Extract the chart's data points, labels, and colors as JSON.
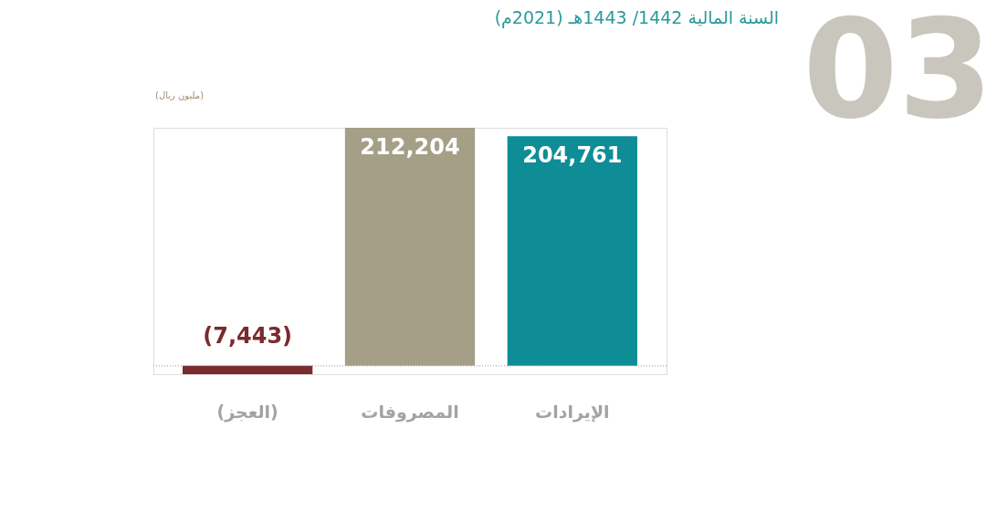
{
  "chart_data": {
    "type": "bar",
    "title": "السنة المالية 1442/ 1443هـ (2021م)",
    "ylabel": "(مليون ريال)",
    "categories": [
      "(العجز)",
      "المصروفات",
      "الإيرادات"
    ],
    "values": [
      -7443,
      212204,
      204761
    ],
    "colors": [
      "#7b2a2e",
      "#a59f87",
      "#0e8d96"
    ],
    "value_labels": [
      "(7,443)",
      "212,204",
      "204,761"
    ],
    "ref_lines": [
      {
        "axis": "y",
        "value": 0,
        "color": "#999999",
        "line_style": "dotted"
      }
    ],
    "annotations": [
      "03"
    ]
  }
}
